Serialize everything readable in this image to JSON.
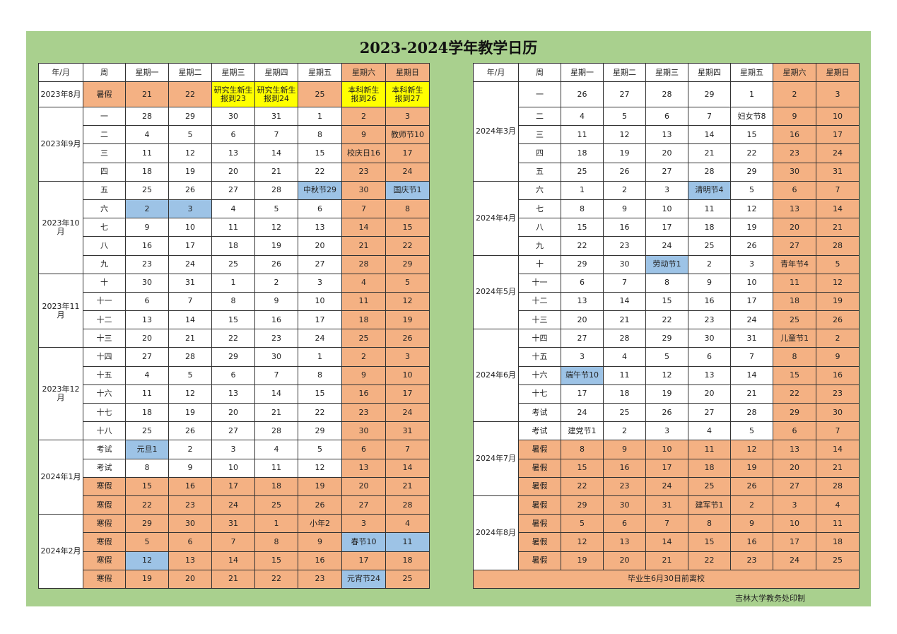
{
  "title": "2023-2024学年教学日历",
  "header": [
    "年/月",
    "周",
    "星期一",
    "星期二",
    "星期三",
    "星期四",
    "星期五",
    "星期六",
    "星期日"
  ],
  "header_colors": "wwwwwwwss",
  "colors": {
    "salmon": "#F4B183",
    "blue": "#9DC3E6",
    "yellow": "#FFFF00",
    "green": "#A9D08E"
  },
  "left": [
    {
      "month": "2023年8月",
      "rows": [
        {
          "week": "暑假",
          "days": [
            "21",
            "22",
            "研究生新生\n报到23",
            "研究生新生\n报到24",
            "25",
            "本科新生\n报到26",
            "本科新生\n报到27"
          ],
          "c": "sssyysyy"
        }
      ]
    },
    {
      "month": "2023年9月",
      "rows": [
        {
          "week": "一",
          "days": [
            "28",
            "29",
            "30",
            "31",
            "1",
            "2",
            "3"
          ],
          "c": "wwwwwwss"
        },
        {
          "week": "二",
          "days": [
            "4",
            "5",
            "6",
            "7",
            "8",
            "9",
            "教师节10"
          ],
          "c": "wwwwwwss"
        },
        {
          "week": "三",
          "days": [
            "11",
            "12",
            "13",
            "14",
            "15",
            "校庆日16",
            "17"
          ],
          "c": "wwwwwwss"
        },
        {
          "week": "四",
          "days": [
            "18",
            "19",
            "20",
            "21",
            "22",
            "23",
            "24"
          ],
          "c": "wwwwwwss"
        }
      ]
    },
    {
      "month": "2023年10月",
      "rows": [
        {
          "week": "五",
          "days": [
            "25",
            "26",
            "27",
            "28",
            "中秋节29",
            "30",
            "国庆节1"
          ],
          "c": "wwwwwbsb"
        },
        {
          "week": "六",
          "days": [
            "2",
            "3",
            "4",
            "5",
            "6",
            "7",
            "8"
          ],
          "c": "wbbwwwss"
        },
        {
          "week": "七",
          "days": [
            "9",
            "10",
            "11",
            "12",
            "13",
            "14",
            "15"
          ],
          "c": "wwwwwwss"
        },
        {
          "week": "八",
          "days": [
            "16",
            "17",
            "18",
            "19",
            "20",
            "21",
            "22"
          ],
          "c": "wwwwwwss"
        },
        {
          "week": "九",
          "days": [
            "23",
            "24",
            "25",
            "26",
            "27",
            "28",
            "29"
          ],
          "c": "wwwwwwss"
        }
      ]
    },
    {
      "month": "2023年11月",
      "rows": [
        {
          "week": "十",
          "days": [
            "30",
            "31",
            "1",
            "2",
            "3",
            "4",
            "5"
          ],
          "c": "wwwwwwss"
        },
        {
          "week": "十一",
          "days": [
            "6",
            "7",
            "8",
            "9",
            "10",
            "11",
            "12"
          ],
          "c": "wwwwwwss"
        },
        {
          "week": "十二",
          "days": [
            "13",
            "14",
            "15",
            "16",
            "17",
            "18",
            "19"
          ],
          "c": "wwwwwwss"
        },
        {
          "week": "十三",
          "days": [
            "20",
            "21",
            "22",
            "23",
            "24",
            "25",
            "26"
          ],
          "c": "wwwwwwss"
        }
      ]
    },
    {
      "month": "2023年12月",
      "rows": [
        {
          "week": "十四",
          "days": [
            "27",
            "28",
            "29",
            "30",
            "1",
            "2",
            "3"
          ],
          "c": "wwwwwwss"
        },
        {
          "week": "十五",
          "days": [
            "4",
            "5",
            "6",
            "7",
            "8",
            "9",
            "10"
          ],
          "c": "wwwwwwss"
        },
        {
          "week": "十六",
          "days": [
            "11",
            "12",
            "13",
            "14",
            "15",
            "16",
            "17"
          ],
          "c": "wwwwwwss"
        },
        {
          "week": "十七",
          "days": [
            "18",
            "19",
            "20",
            "21",
            "22",
            "23",
            "24"
          ],
          "c": "wwwwwwss"
        },
        {
          "week": "十八",
          "days": [
            "25",
            "26",
            "27",
            "28",
            "29",
            "30",
            "31"
          ],
          "c": "wwwwwwss"
        }
      ]
    },
    {
      "month": "2024年1月",
      "rows": [
        {
          "week": "考试",
          "days": [
            "元旦1",
            "2",
            "3",
            "4",
            "5",
            "6",
            "7"
          ],
          "c": "wbwwwwss"
        },
        {
          "week": "考试",
          "days": [
            "8",
            "9",
            "10",
            "11",
            "12",
            "13",
            "14"
          ],
          "c": "wwwwwwss"
        },
        {
          "week": "寒假",
          "days": [
            "15",
            "16",
            "17",
            "18",
            "19",
            "20",
            "21"
          ],
          "c": "ssssssss"
        },
        {
          "week": "寒假",
          "days": [
            "22",
            "23",
            "24",
            "25",
            "26",
            "27",
            "28"
          ],
          "c": "ssssssss"
        }
      ]
    },
    {
      "month": "2024年2月",
      "rows": [
        {
          "week": "寒假",
          "days": [
            "29",
            "30",
            "31",
            "1",
            "小年2",
            "3",
            "4"
          ],
          "c": "ssssssss"
        },
        {
          "week": "寒假",
          "days": [
            "5",
            "6",
            "7",
            "8",
            "9",
            "春节10",
            "11"
          ],
          "c": "ssssssbb"
        },
        {
          "week": "寒假",
          "days": [
            "12",
            "13",
            "14",
            "15",
            "16",
            "17",
            "18"
          ],
          "c": "sbssssss"
        },
        {
          "week": "寒假",
          "days": [
            "19",
            "20",
            "21",
            "22",
            "23",
            "元宵节24",
            "25"
          ],
          "c": "ssssssbs"
        }
      ]
    }
  ],
  "right": [
    {
      "month": "2024年3月",
      "rows": [
        {
          "week": "一",
          "days": [
            "26",
            "27",
            "28",
            "29",
            "1",
            "2",
            "3"
          ],
          "c": "wwwwwwss"
        },
        {
          "week": "二",
          "days": [
            "4",
            "5",
            "6",
            "7",
            "妇女节8",
            "9",
            "10"
          ],
          "c": "wwwwwwss"
        },
        {
          "week": "三",
          "days": [
            "11",
            "12",
            "13",
            "14",
            "15",
            "16",
            "17"
          ],
          "c": "wwwwwwss"
        },
        {
          "week": "四",
          "days": [
            "18",
            "19",
            "20",
            "21",
            "22",
            "23",
            "24"
          ],
          "c": "wwwwwwss"
        },
        {
          "week": "五",
          "days": [
            "25",
            "26",
            "27",
            "28",
            "29",
            "30",
            "31"
          ],
          "c": "wwwwwwss"
        }
      ]
    },
    {
      "month": "2024年4月",
      "rows": [
        {
          "week": "六",
          "days": [
            "1",
            "2",
            "3",
            "清明节4",
            "5",
            "6",
            "7"
          ],
          "c": "wwwwbwss"
        },
        {
          "week": "七",
          "days": [
            "8",
            "9",
            "10",
            "11",
            "12",
            "13",
            "14"
          ],
          "c": "wwwwwwss"
        },
        {
          "week": "八",
          "days": [
            "15",
            "16",
            "17",
            "18",
            "19",
            "20",
            "21"
          ],
          "c": "wwwwwwss"
        },
        {
          "week": "九",
          "days": [
            "22",
            "23",
            "24",
            "25",
            "26",
            "27",
            "28"
          ],
          "c": "wwwwwwss"
        }
      ]
    },
    {
      "month": "2024年5月",
      "rows": [
        {
          "week": "十",
          "days": [
            "29",
            "30",
            "劳动节1",
            "2",
            "3",
            "青年节4",
            "5"
          ],
          "c": "wwwbwwss"
        },
        {
          "week": "十一",
          "days": [
            "6",
            "7",
            "8",
            "9",
            "10",
            "11",
            "12"
          ],
          "c": "wwwwwwss"
        },
        {
          "week": "十二",
          "days": [
            "13",
            "14",
            "15",
            "16",
            "17",
            "18",
            "19"
          ],
          "c": "wwwwwwss"
        },
        {
          "week": "十三",
          "days": [
            "20",
            "21",
            "22",
            "23",
            "24",
            "25",
            "26"
          ],
          "c": "wwwwwwss"
        }
      ]
    },
    {
      "month": "2024年6月",
      "rows": [
        {
          "week": "十四",
          "days": [
            "27",
            "28",
            "29",
            "30",
            "31",
            "儿童节1",
            "2"
          ],
          "c": "wwwwwwss"
        },
        {
          "week": "十五",
          "days": [
            "3",
            "4",
            "5",
            "6",
            "7",
            "8",
            "9"
          ],
          "c": "wwwwwwss"
        },
        {
          "week": "十六",
          "days": [
            "端午节10",
            "11",
            "12",
            "13",
            "14",
            "15",
            "16"
          ],
          "c": "wbwwwwss"
        },
        {
          "week": "十七",
          "days": [
            "17",
            "18",
            "19",
            "20",
            "21",
            "22",
            "23"
          ],
          "c": "wwwwwwss"
        },
        {
          "week": "考试",
          "days": [
            "24",
            "25",
            "26",
            "27",
            "28",
            "29",
            "30"
          ],
          "c": "wwwwwwss"
        }
      ]
    },
    {
      "month": "2024年7月",
      "rows": [
        {
          "week": "考试",
          "days": [
            "建党节1",
            "2",
            "3",
            "4",
            "5",
            "6",
            "7"
          ],
          "c": "wwwwwwss"
        },
        {
          "week": "暑假",
          "days": [
            "8",
            "9",
            "10",
            "11",
            "12",
            "13",
            "14"
          ],
          "c": "ssssssss"
        },
        {
          "week": "暑假",
          "days": [
            "15",
            "16",
            "17",
            "18",
            "19",
            "20",
            "21"
          ],
          "c": "ssssssss"
        },
        {
          "week": "暑假",
          "days": [
            "22",
            "23",
            "24",
            "25",
            "26",
            "27",
            "28"
          ],
          "c": "ssssssss"
        }
      ]
    },
    {
      "month": "2024年8月",
      "rows": [
        {
          "week": "暑假",
          "days": [
            "29",
            "30",
            "31",
            "建军节1",
            "2",
            "3",
            "4"
          ],
          "c": "ssssssss"
        },
        {
          "week": "暑假",
          "days": [
            "5",
            "6",
            "7",
            "8",
            "9",
            "10",
            "11"
          ],
          "c": "ssssssss"
        },
        {
          "week": "暑假",
          "days": [
            "12",
            "13",
            "14",
            "15",
            "16",
            "17",
            "18"
          ],
          "c": "ssssssss"
        },
        {
          "week": "暑假",
          "days": [
            "19",
            "20",
            "21",
            "22",
            "23",
            "24",
            "25"
          ],
          "c": "ssssssss"
        }
      ]
    }
  ],
  "footer_note": "毕业生6月30日前离校",
  "printer": "吉林大学教务处印制"
}
